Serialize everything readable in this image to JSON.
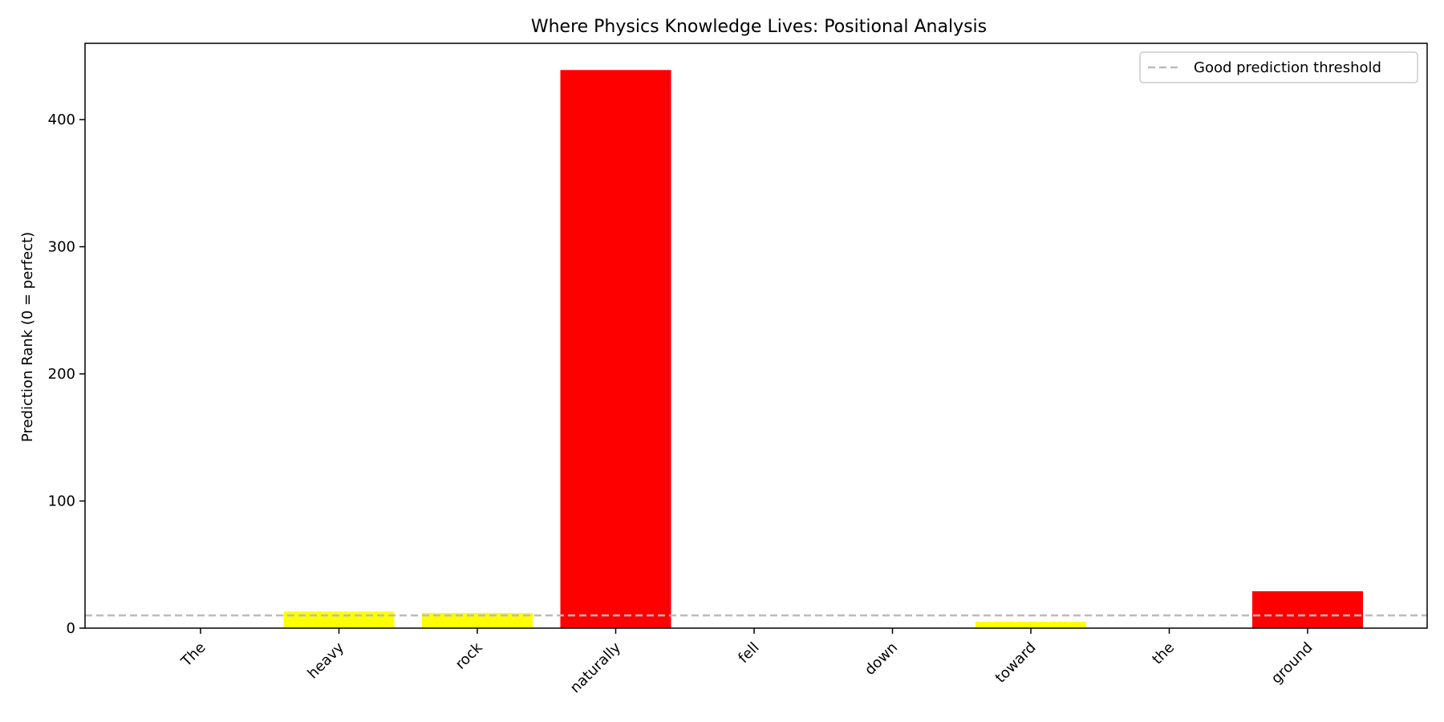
{
  "chart_data": {
    "type": "bar",
    "title": "Where Physics Knowledge Lives: Positional Analysis",
    "xlabel": "",
    "ylabel": "Prediction Rank (0 = perfect)",
    "categories": [
      "The",
      "heavy",
      "rock",
      "naturally",
      "fell",
      "down",
      "toward",
      "the",
      "ground"
    ],
    "values": [
      0,
      13,
      12,
      439,
      0,
      0,
      5,
      0,
      29
    ],
    "bar_colors": [
      "#ff0000",
      "#ffff00",
      "#ffff00",
      "#ff0000",
      "#ff0000",
      "#ff0000",
      "#ffff00",
      "#ff0000",
      "#ff0000"
    ],
    "ylim": [
      0,
      460
    ],
    "yticks": [
      0,
      100,
      200,
      300,
      400
    ],
    "threshold": {
      "value": 10,
      "label": "Good prediction threshold",
      "color": "#bbbbbb"
    },
    "legend_position": "top-right",
    "grid": false
  }
}
